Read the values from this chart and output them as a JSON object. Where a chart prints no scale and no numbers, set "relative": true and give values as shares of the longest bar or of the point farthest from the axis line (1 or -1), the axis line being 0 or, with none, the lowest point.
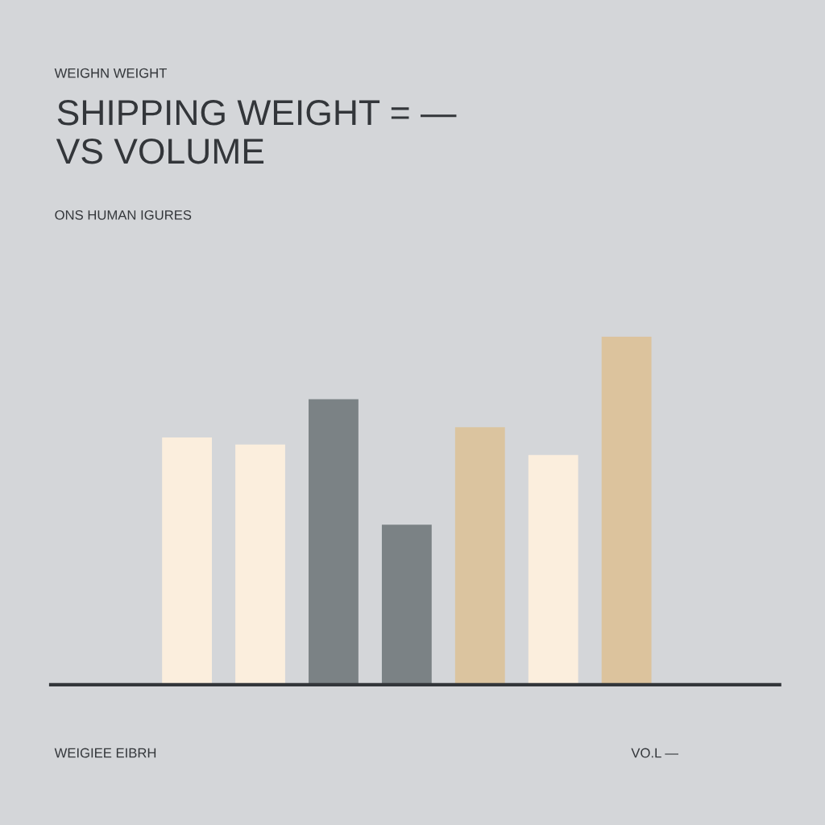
{
  "chart_data": {
    "type": "bar",
    "relative": true,
    "title": "SHIPPING WEIGHT = —\nVS VOLUME",
    "subtitle": "ONS HUMAN IGURES",
    "xlabel": "WEIGIEE EIBRH",
    "annotations": [
      "WEIGHN WEIGHT",
      "VO.L —"
    ],
    "categories": [
      null,
      null,
      null,
      null,
      null,
      null,
      null
    ],
    "values": [
      0.71,
      0.69,
      0.82,
      0.46,
      0.74,
      0.66,
      1.0
    ],
    "colors": [
      "#fbeedd",
      "#fbeedd",
      "#7b8285",
      "#7b8285",
      "#dbc49f",
      "#fbeedd",
      "#dcc39d"
    ],
    "grid": false,
    "legend": false
  }
}
